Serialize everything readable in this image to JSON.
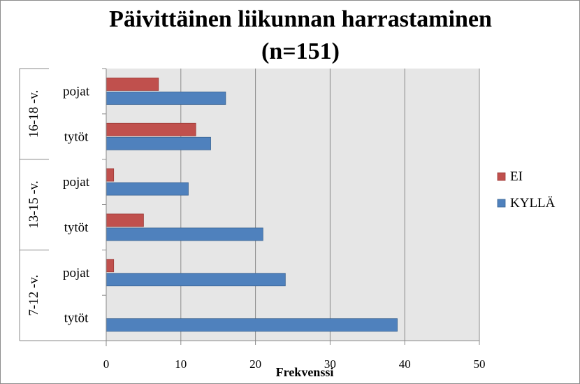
{
  "chart_data": {
    "type": "bar",
    "orientation": "horizontal",
    "title": [
      "Päivittäinen liikunnan harrastaminen",
      "(n=151)"
    ],
    "xlabel": "Frekvenssi",
    "ylabel": "",
    "xlim": [
      0,
      50
    ],
    "xticks": [
      0,
      10,
      20,
      30,
      40,
      50
    ],
    "grid": true,
    "legend_position": "right",
    "groups": [
      {
        "label": "16-18 -v.",
        "categories": [
          {
            "label": "pojat",
            "values": {
              "EI": 7,
              "KYLLÄ": 16
            }
          },
          {
            "label": "tytöt",
            "values": {
              "EI": 12,
              "KYLLÄ": 14
            }
          }
        ]
      },
      {
        "label": "13-15 -v.",
        "categories": [
          {
            "label": "pojat",
            "values": {
              "EI": 1,
              "KYLLÄ": 11
            }
          },
          {
            "label": "tytöt",
            "values": {
              "EI": 5,
              "KYLLÄ": 21
            }
          }
        ]
      },
      {
        "label": "7-12 -v.",
        "categories": [
          {
            "label": "pojat",
            "values": {
              "EI": 1,
              "KYLLÄ": 24
            }
          },
          {
            "label": "tytöt",
            "values": {
              "EI": 0,
              "KYLLÄ": 39
            }
          }
        ]
      }
    ],
    "series": [
      {
        "name": "EI",
        "color": "#c0504d"
      },
      {
        "name": "KYLLÄ",
        "color": "#4f81bd"
      }
    ]
  }
}
